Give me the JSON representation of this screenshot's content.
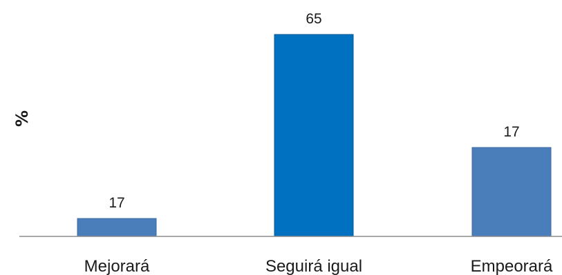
{
  "chart_data": {
    "type": "bar",
    "title": "",
    "xlabel": "",
    "ylabel": "%",
    "categories": [
      "Mejorará",
      "Seguirá igual",
      "Empeorará"
    ],
    "values": [
      17,
      65,
      17
    ],
    "data_labels": [
      "17",
      "65",
      "17"
    ],
    "colors": [
      "#4a7ebb",
      "#0070c0",
      "#4a7ebb"
    ],
    "ylim": [
      0,
      65
    ],
    "grid": false,
    "legend": "none"
  }
}
